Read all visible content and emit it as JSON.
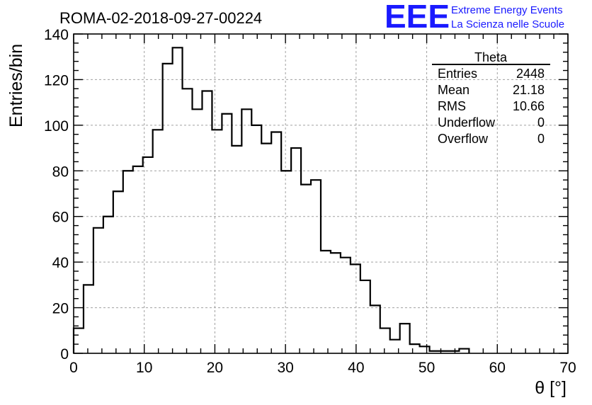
{
  "header": {
    "run_title": "ROMA-02-2018-09-27-00224",
    "logo": "EEE",
    "logo_line1": "Extreme Energy Events",
    "logo_line2": "La Scienza nelle Scuole",
    "logo_color": "#1a1aff"
  },
  "stats": {
    "name": "Theta",
    "rows": [
      {
        "label": "Entries",
        "value": "2448"
      },
      {
        "label": "Mean",
        "value": "21.18"
      },
      {
        "label": "RMS",
        "value": "10.66"
      },
      {
        "label": "Underflow",
        "value": "0"
      },
      {
        "label": "Overflow",
        "value": "0"
      }
    ]
  },
  "chart_data": {
    "type": "bar",
    "style": "step-histogram",
    "xlabel": "θ [°]",
    "ylabel": "Entries/bin",
    "xlim": [
      0,
      70
    ],
    "ylim": [
      0,
      140
    ],
    "grid": true,
    "bin_width": 1.4,
    "x_ticks": [
      0,
      10,
      20,
      30,
      40,
      50,
      60,
      70
    ],
    "y_ticks": [
      0,
      20,
      40,
      60,
      80,
      100,
      120,
      140
    ],
    "bin_edges": [
      0,
      1.4,
      2.8,
      4.2,
      5.6,
      7.0,
      8.4,
      9.8,
      11.2,
      12.6,
      14.0,
      15.4,
      16.8,
      18.2,
      19.6,
      21.0,
      22.4,
      23.8,
      25.2,
      26.6,
      28.0,
      29.4,
      30.8,
      32.2,
      33.6,
      35.0,
      36.4,
      37.8,
      39.2,
      40.6,
      42.0,
      43.4,
      44.8,
      46.2,
      47.6,
      49.0,
      50.4,
      51.8,
      53.2,
      54.6,
      56.0
    ],
    "values": [
      11,
      30,
      55,
      60,
      71,
      80,
      82,
      86,
      98,
      127,
      134,
      116,
      107,
      115,
      98,
      105,
      91,
      107,
      100,
      92,
      97,
      80,
      90,
      74,
      76,
      45,
      44,
      42,
      39,
      32,
      21,
      11,
      6,
      13,
      4,
      3,
      1,
      1,
      1,
      2
    ]
  }
}
